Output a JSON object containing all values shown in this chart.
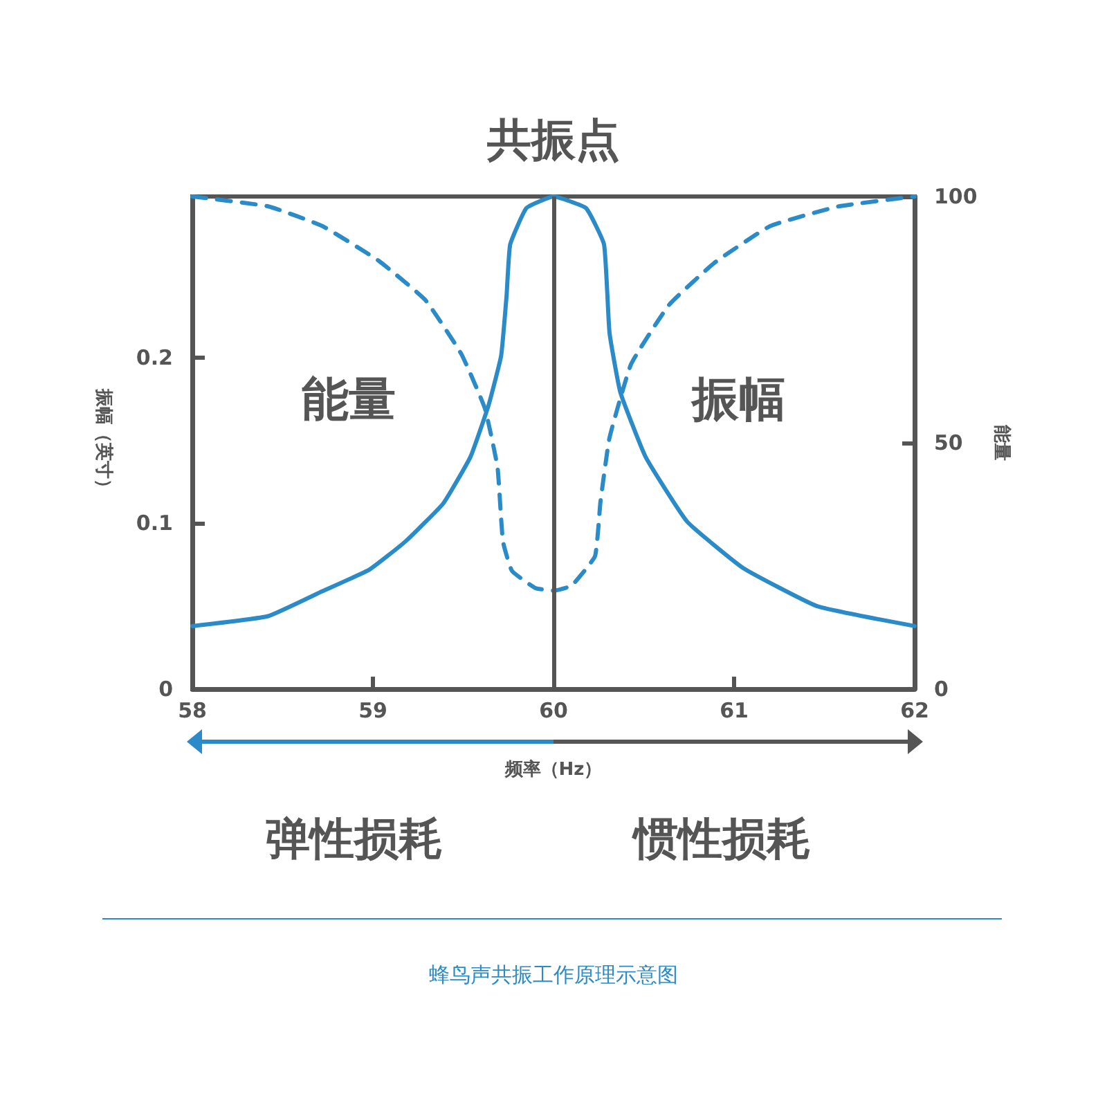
{
  "chart_data": {
    "type": "line",
    "title": "共振点",
    "xlabel": "频率（Hz）",
    "ylabel": "振幅（英寸）",
    "y2label": "能量",
    "xlim": [
      58,
      62
    ],
    "xticks": [
      58,
      59,
      60,
      61,
      62
    ],
    "ylim": [
      0,
      0.297
    ],
    "yticks": [
      0,
      0.1,
      0.2
    ],
    "y2lim": [
      0,
      100
    ],
    "y2ticks": [
      0,
      50,
      100
    ],
    "grid": false,
    "marker": "none",
    "series": [
      {
        "color": "#2a8bc8",
        "line_style": "solid",
        "x": [
          58,
          58.42,
          58.72,
          58.98,
          59.18,
          59.39,
          59.54,
          59.64,
          59.71,
          59.74,
          59.76,
          59.85,
          60,
          60.18,
          60.28,
          60.31,
          60.37,
          60.51,
          60.74,
          61.05,
          61.46,
          62
        ],
        "values": [
          0.038,
          0.044,
          0.059,
          0.072,
          0.089,
          0.112,
          0.14,
          0.171,
          0.201,
          0.237,
          0.268,
          0.29,
          0.297,
          0.29,
          0.268,
          0.215,
          0.179,
          0.14,
          0.101,
          0.073,
          0.05,
          0.038
        ]
      },
      {
        "color": "#2a8bc8",
        "line_style": "dashed",
        "axis": "y2",
        "x": [
          58,
          58.42,
          58.72,
          59.03,
          59.29,
          59.49,
          59.62,
          59.69,
          59.72,
          59.77,
          59.9,
          60,
          60.1,
          60.23,
          60.26,
          60.31,
          60.43,
          60.64,
          60.89,
          61.2,
          61.58,
          62
        ],
        "values": [
          100,
          98,
          94,
          87,
          79,
          68,
          57,
          45,
          30,
          24,
          20.5,
          20,
          21,
          27,
          38,
          51,
          66,
          78,
          86.5,
          94,
          98,
          100
        ]
      }
    ],
    "ref_lines": [
      {
        "axis": "x",
        "value": 60,
        "color": "#555555"
      }
    ],
    "annotations": [
      "能量",
      "振幅",
      "弹性损耗",
      "惯性损耗",
      "蜂鸟声共振工作原理示意图"
    ]
  }
}
